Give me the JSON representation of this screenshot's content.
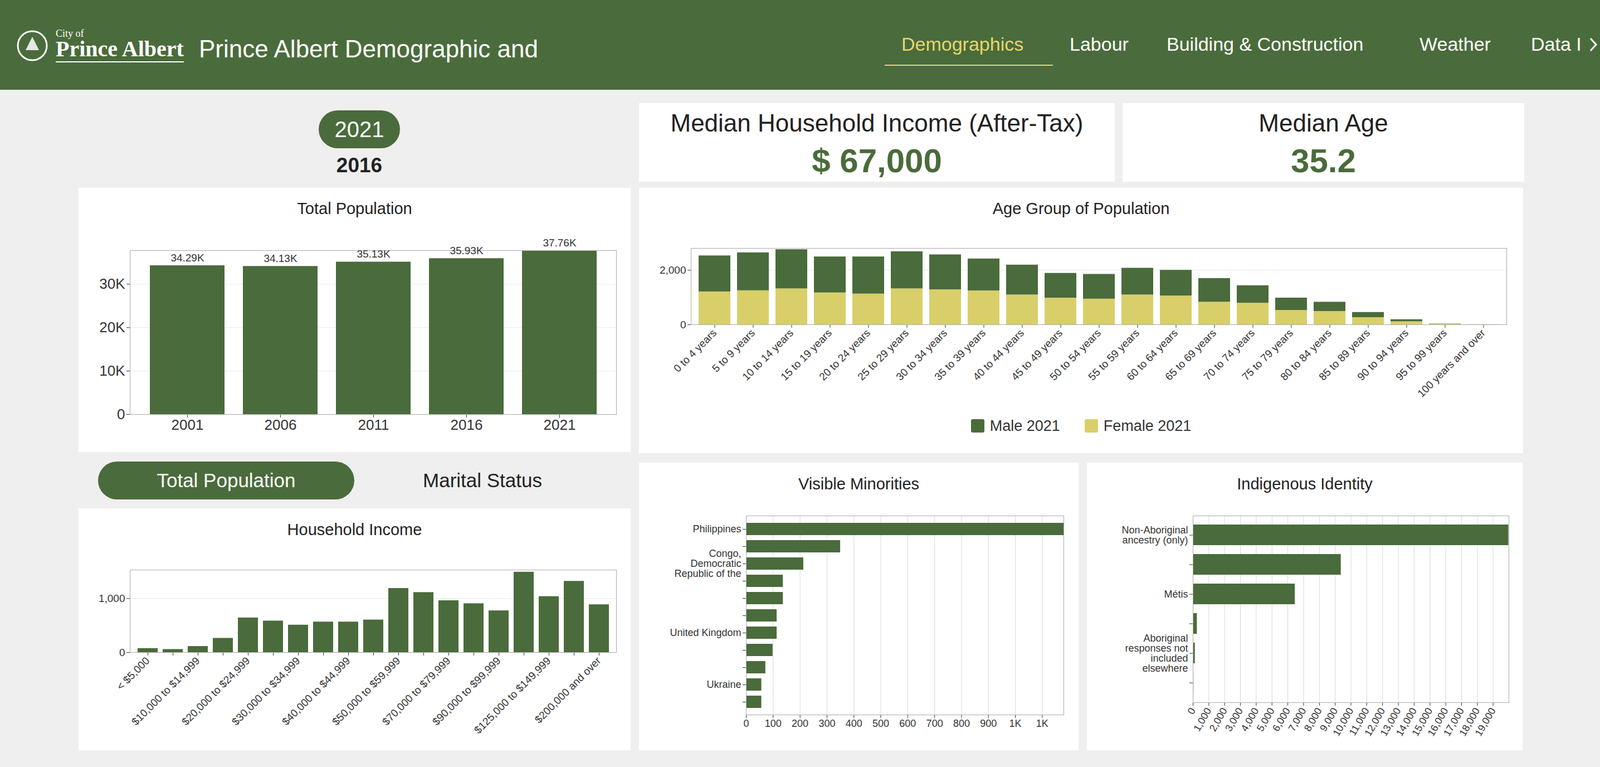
{
  "header": {
    "logo": {
      "small": "City of",
      "name": "Prince Albert"
    },
    "title": "Prince Albert Demographic and",
    "nav": [
      "Demographics",
      "Labour",
      "Building & Construction",
      "Weather",
      "Data I"
    ],
    "active": "Demographics"
  },
  "year_selector": {
    "selected": "2021",
    "other": "2016"
  },
  "kpis": [
    {
      "title": "Median Household Income (After-Tax)",
      "value": "$ 67,000"
    },
    {
      "title": "Median Age",
      "value": "35.2"
    }
  ],
  "tabs": {
    "selected": "Total Population",
    "other": "Marital Status"
  },
  "chart_data": [
    {
      "type": "bar",
      "title": "Total Population",
      "categories": [
        "2001",
        "2006",
        "2011",
        "2016",
        "2021"
      ],
      "values": [
        34290,
        34130,
        35130,
        35930,
        37760
      ],
      "value_labels": [
        "34.29K",
        "34.13K",
        "35.13K",
        "35.93K",
        "37.76K"
      ],
      "data_labels": true,
      "color": "#4a6b3b",
      "ylim": [
        0,
        37760
      ],
      "yticks": [
        0,
        {
          "value": 10000,
          "label": "10K"
        },
        {
          "value": 20000,
          "label": "20K"
        },
        {
          "value": 30000,
          "label": "30K"
        }
      ],
      "grid": true
    },
    {
      "type": "bar",
      "title": "Age Group of Population",
      "stacked": true,
      "legend": "bottom",
      "categories": [
        "0 to 4 years",
        "5 to 9 years",
        "10 to 14 years",
        "15 to 19 years",
        "20 to 24 years",
        "25 to 29 years",
        "30 to 34 years",
        "35 to 39 years",
        "40 to 44 years",
        "45 to 49 years",
        "50 to 54 years",
        "55 to 59 years",
        "60 to 64 years",
        "65 to 69 years",
        "70 to 74 years",
        "75 to 79 years",
        "80 to 84 years",
        "85 to 89 years",
        "90 to 94 years",
        "95 to 99 years",
        "100 years and over"
      ],
      "series": [
        {
          "name": "Male 2021",
          "color": "#4a6b3b",
          "values": [
            1320,
            1390,
            1435,
            1320,
            1360,
            1360,
            1283,
            1170,
            1095,
            907,
            907,
            980,
            943,
            868,
            642,
            453,
            340,
            189,
            76,
            8,
            2
          ]
        },
        {
          "name": "Female 2021",
          "color": "#d8cf6b",
          "values": [
            1208,
            1250,
            1320,
            1170,
            1130,
            1320,
            1283,
            1245,
            1095,
            980,
            943,
            1095,
            1057,
            830,
            792,
            528,
            490,
            264,
            113,
            30,
            3
          ]
        }
      ],
      "ylim": [
        0,
        2800
      ],
      "yticks": [
        0,
        {
          "value": 2000,
          "label": "2,000"
        }
      ],
      "grid": true
    },
    {
      "type": "bar",
      "title": "Household Income",
      "categories": [
        "< $5,000",
        null,
        "$10,000 to $14,999",
        null,
        "$20,000 to $24,999",
        null,
        "$30,000 to $34,999",
        null,
        "$40,000 to $44,999",
        null,
        "$50,000 to $59,999",
        null,
        "$70,000 to $79,999",
        null,
        "$90,000 to $99,999",
        null,
        "$125,000 to $149,999",
        null,
        "$200,000 and over"
      ],
      "values": [
        75,
        57,
        113,
        264,
        642,
        585,
        509,
        566,
        566,
        604,
        1189,
        1113,
        962,
        906,
        774,
        1491,
        1038,
        1321,
        887
      ],
      "color": "#4a6b3b",
      "ylim": [
        0,
        1530
      ],
      "yticks": [
        0,
        {
          "value": 1000,
          "label": "1,000"
        }
      ],
      "grid": true
    },
    {
      "type": "bar",
      "title": "Visible Minorities",
      "orientation": "horizontal",
      "categories": [
        "Philippines",
        null,
        "Congo, Democratic Republic of the",
        null,
        null,
        null,
        "United Kingdom",
        null,
        null,
        "Ukraine",
        null
      ],
      "values": [
        1180,
        350,
        213,
        137,
        137,
        114,
        114,
        99,
        72,
        57,
        57
      ],
      "color": "#4a6b3b",
      "xlim": [
        0,
        1180
      ],
      "xticks": [
        0,
        100,
        200,
        300,
        400,
        500,
        600,
        700,
        800,
        900,
        {
          "value": 1000,
          "label": "1K"
        },
        {
          "value": 1100,
          "label": "1K"
        }
      ],
      "grid": true
    },
    {
      "type": "bar",
      "title": "Indigenous Identity",
      "orientation": "horizontal",
      "categories": [
        "Non-Aboriginal ancestry (only)",
        null,
        "Métis",
        null,
        "Aboriginal responses not included elsewhere",
        null
      ],
      "values": [
        19980,
        9370,
        6460,
        260,
        130,
        40
      ],
      "color": "#4a6b3b",
      "xlim": [
        0,
        20000
      ],
      "xticks": [
        0,
        {
          "value": 1000,
          "label": "1,000"
        },
        {
          "value": 2000,
          "label": "2,000"
        },
        {
          "value": 3000,
          "label": "3,000"
        },
        {
          "value": 4000,
          "label": "4,000"
        },
        {
          "value": 5000,
          "label": "5,000"
        },
        {
          "value": 6000,
          "label": "6,000"
        },
        {
          "value": 7000,
          "label": "7,000"
        },
        {
          "value": 8000,
          "label": "8,000"
        },
        {
          "value": 9000,
          "label": "9,000"
        },
        {
          "value": 10000,
          "label": "10,000"
        },
        {
          "value": 11000,
          "label": "11,000"
        },
        {
          "value": 12000,
          "label": "12,000"
        },
        {
          "value": 13000,
          "label": "13,000"
        },
        {
          "value": 14000,
          "label": "14,000"
        },
        {
          "value": 15000,
          "label": "15,000"
        },
        {
          "value": 16000,
          "label": "16,000"
        },
        {
          "value": 17000,
          "label": "17,000"
        },
        {
          "value": 18000,
          "label": "18,000"
        },
        {
          "value": 19000,
          "label": "19,000"
        }
      ],
      "grid": true
    }
  ]
}
